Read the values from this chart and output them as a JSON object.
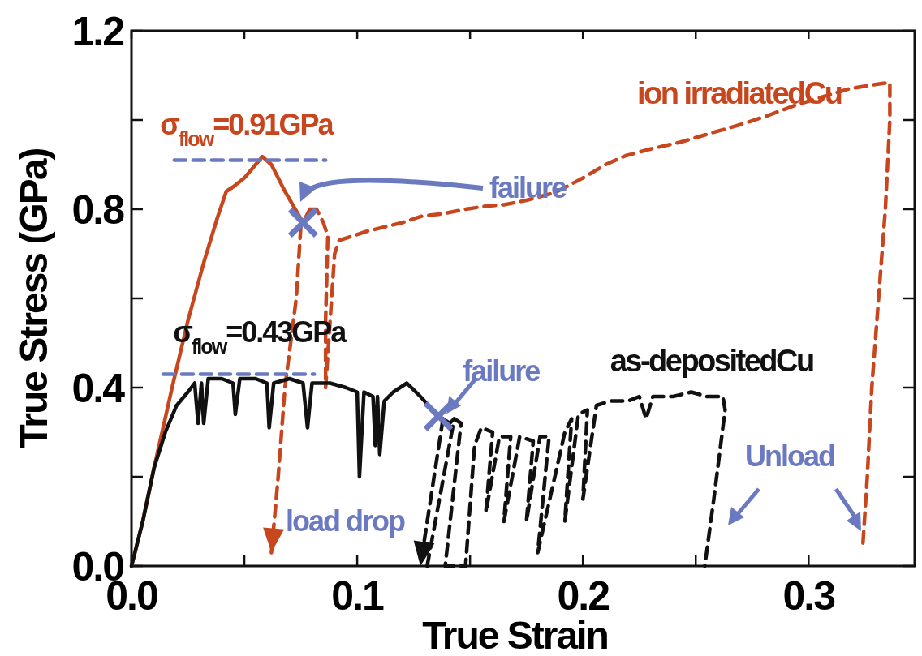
{
  "chart_data": {
    "type": "line",
    "xlabel": "True Strain",
    "ylabel": "True Stress (GPa)",
    "xlim": [
      0,
      0.347
    ],
    "ylim": [
      0,
      1.2
    ],
    "xticks": [
      {
        "value": 0,
        "label": "0.0"
      },
      {
        "value": 0.05,
        "label": null
      },
      {
        "value": 0.1,
        "label": "0.1"
      },
      {
        "value": 0.15,
        "label": null
      },
      {
        "value": 0.2,
        "label": "0.2"
      },
      {
        "value": 0.25,
        "label": null
      },
      {
        "value": 0.3,
        "label": "0.3"
      }
    ],
    "yticks": [
      {
        "value": 0,
        "label": "0.0"
      },
      {
        "value": 0.2,
        "label": null
      },
      {
        "value": 0.4,
        "label": "0.4"
      },
      {
        "value": 0.6,
        "label": null
      },
      {
        "value": 0.8,
        "label": "0.8"
      },
      {
        "value": 1.0,
        "label": null
      },
      {
        "value": 1.2,
        "label": "1.2"
      }
    ],
    "grid": false,
    "legend": false,
    "series": [
      {
        "color": "#c8461e",
        "line_style": "solid",
        "x": [
          0,
          0.005,
          0.01,
          0.018,
          0.025,
          0.032,
          0.038,
          0.042,
          0.045,
          0.05,
          0.055,
          0.058,
          0.062,
          0.068,
          0.076,
          0.079
        ],
        "values": [
          0,
          0.1,
          0.22,
          0.4,
          0.55,
          0.68,
          0.78,
          0.84,
          0.85,
          0.87,
          0.9,
          0.918,
          0.9,
          0.84,
          0.77,
          0.8
        ]
      },
      {
        "color": "#c8461e",
        "line_style": "dashed",
        "x": [
          0.075,
          0.073,
          0.068,
          0.065,
          0.062
        ],
        "values": [
          0.76,
          0.6,
          0.4,
          0.2,
          0.03
        ]
      },
      {
        "name": "ion irradiatedCu",
        "color": "#c8461e",
        "line_style": "dashed",
        "x": [
          0.079,
          0.082,
          0.085,
          0.087,
          0.086,
          0.086,
          0.088,
          0.09,
          0.092,
          0.098,
          0.104,
          0.112,
          0.12,
          0.129,
          0.138,
          0.148,
          0.157,
          0.165,
          0.175,
          0.188,
          0.2,
          0.21,
          0.219,
          0.23,
          0.243,
          0.257,
          0.27,
          0.282,
          0.294,
          0.305,
          0.318,
          0.33,
          0.336,
          0.336,
          0.334,
          0.331,
          0.328,
          0.326,
          0.324
        ],
        "values": [
          0.8,
          0.8,
          0.77,
          0.74,
          0.55,
          0.4,
          0.55,
          0.7,
          0.73,
          0.74,
          0.75,
          0.76,
          0.77,
          0.785,
          0.79,
          0.8,
          0.807,
          0.81,
          0.82,
          0.838,
          0.87,
          0.9,
          0.92,
          0.935,
          0.95,
          0.971,
          0.99,
          1.01,
          1.033,
          1.05,
          1.07,
          1.08,
          1.084,
          1.0,
          0.8,
          0.6,
          0.4,
          0.2,
          0.045
        ]
      },
      {
        "color": "#111111",
        "line_style": "solid",
        "x": [
          0,
          0.005,
          0.01,
          0.015,
          0.02,
          0.025,
          0.028,
          0.0295,
          0.031,
          0.032,
          0.034,
          0.04,
          0.045,
          0.046,
          0.048,
          0.055,
          0.06,
          0.061,
          0.063,
          0.07,
          0.076,
          0.078,
          0.08,
          0.088,
          0.095,
          0.1,
          0.101,
          0.103,
          0.107,
          0.108,
          0.109,
          0.11,
          0.112,
          0.116,
          0.122,
          0.128,
          0.136,
          0.141,
          0.143
        ],
        "values": [
          0,
          0.1,
          0.22,
          0.3,
          0.36,
          0.39,
          0.41,
          0.32,
          0.41,
          0.32,
          0.42,
          0.42,
          0.41,
          0.34,
          0.42,
          0.42,
          0.41,
          0.31,
          0.41,
          0.42,
          0.41,
          0.31,
          0.41,
          0.41,
          0.4,
          0.39,
          0.2,
          0.39,
          0.38,
          0.27,
          0.38,
          0.25,
          0.37,
          0.39,
          0.41,
          0.38,
          0.336,
          0.32,
          0.33
        ]
      },
      {
        "color": "#111111",
        "line_style": "dashed",
        "x": [
          0.138,
          0.128
        ],
        "values": [
          0.33,
          0.0
        ]
      },
      {
        "name": "as-depositedCu",
        "color": "#111111",
        "line_style": "dashed",
        "x": [
          0.131,
          0.143,
          0.146,
          0.139,
          0.148,
          0.152,
          0.155,
          0.16,
          0.157,
          0.163,
          0.168,
          0.165,
          0.172,
          0.178,
          0.175,
          0.181,
          0.185,
          0.18,
          0.192,
          0.195,
          0.192,
          0.198,
          0.202,
          0.2,
          0.206,
          0.212,
          0.22,
          0.225,
          0.228,
          0.231,
          0.24,
          0.248,
          0.255,
          0.262,
          0.263,
          0.258,
          0.254
        ],
        "values": [
          0.0,
          0.33,
          0.32,
          0.0,
          0.0,
          0.27,
          0.31,
          0.3,
          0.12,
          0.29,
          0.29,
          0.1,
          0.29,
          0.28,
          0.1,
          0.29,
          0.29,
          0.03,
          0.3,
          0.33,
          0.1,
          0.34,
          0.35,
          0.15,
          0.36,
          0.37,
          0.37,
          0.38,
          0.33,
          0.38,
          0.38,
          0.39,
          0.38,
          0.38,
          0.35,
          0.15,
          0.0
        ]
      },
      {
        "color": "#6b7ac0",
        "line_style": "dashed",
        "x": [
          0.019,
          0.086
        ],
        "values": [
          0.91,
          0.91
        ]
      },
      {
        "color": "#6b7ac0",
        "line_style": "dashed",
        "x": [
          0.014,
          0.081
        ],
        "values": [
          0.43,
          0.43
        ]
      },
      {
        "type": "scatter",
        "marker": "cross",
        "color": "#6b7ac0",
        "x": [
          0.076,
          0.136
        ],
        "values": [
          0.77,
          0.336
        ]
      }
    ],
    "annotations": [
      {
        "text": "σ$_{flow}$=0.91GPa",
        "x": 0.058,
        "y": 0.91
      },
      {
        "text": "σ$_{flow}$=0.43GPa",
        "x": 0.04,
        "y": 0.43
      },
      "failure",
      {
        "text": "failure",
        "x": 0.136,
        "y": 0.336
      },
      {
        "text": "load drop",
        "x": 0.128,
        "y": 0.0
      },
      "Unload"
    ]
  }
}
